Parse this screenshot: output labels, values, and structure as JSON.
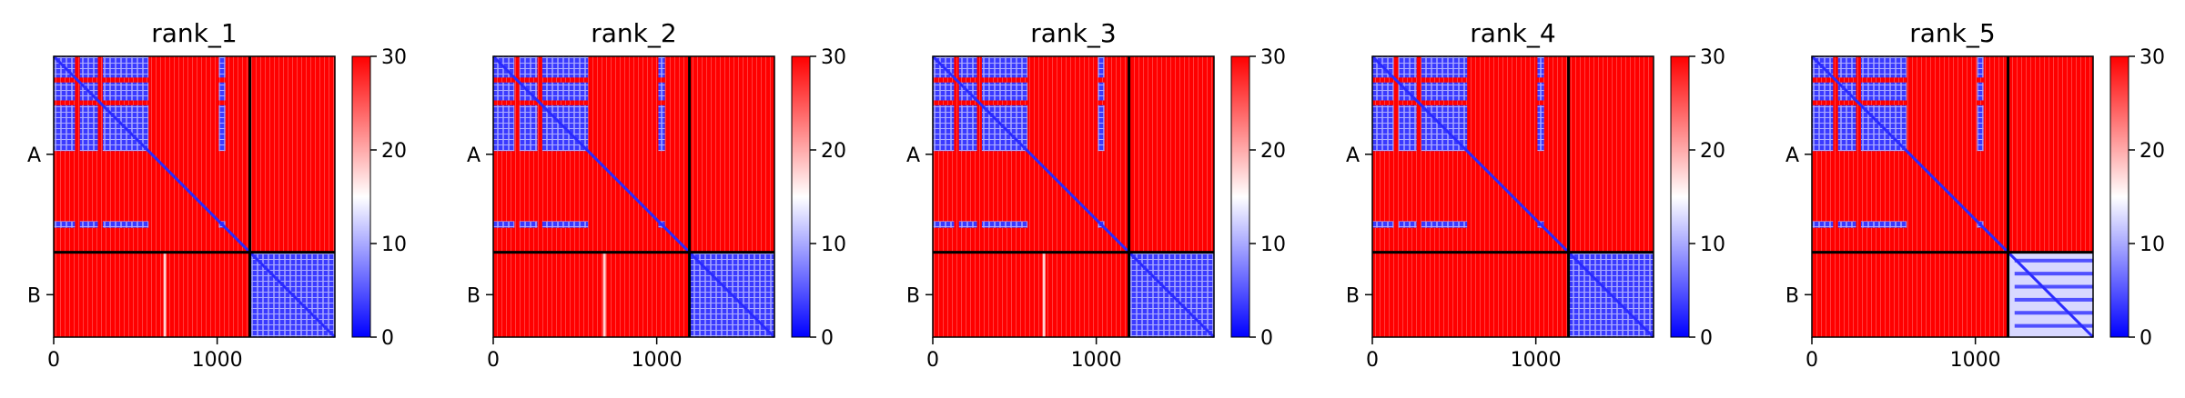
{
  "chart_data": [
    {
      "type": "heatmap",
      "title": "rank_1",
      "x_ticks": [
        0,
        1000
      ],
      "y_tick_labels": [
        "A",
        "B"
      ],
      "chain_boundary": 1200,
      "length": 1720,
      "colorbar": {
        "ticks": [
          0,
          10,
          20,
          30
        ],
        "range": [
          0,
          30
        ],
        "colors": [
          "#0000ff",
          "#ffffff",
          "#ff0000"
        ]
      },
      "a_blue_blocks": [
        [
          0,
          130
        ],
        [
          160,
          270
        ],
        [
          300,
          580
        ],
        [
          1010,
          1050
        ]
      ],
      "b_red_line": 680,
      "b_self_pale": false
    },
    {
      "type": "heatmap",
      "title": "rank_2",
      "x_ticks": [
        0,
        1000
      ],
      "y_tick_labels": [
        "A",
        "B"
      ],
      "chain_boundary": 1200,
      "length": 1720,
      "colorbar": {
        "ticks": [
          0,
          10,
          20,
          30
        ],
        "range": [
          0,
          30
        ],
        "colors": [
          "#0000ff",
          "#ffffff",
          "#ff0000"
        ]
      },
      "a_blue_blocks": [
        [
          0,
          130
        ],
        [
          160,
          270
        ],
        [
          300,
          580
        ],
        [
          1010,
          1050
        ]
      ],
      "b_red_line": 680,
      "b_self_pale": false
    },
    {
      "type": "heatmap",
      "title": "rank_3",
      "x_ticks": [
        0,
        1000
      ],
      "y_tick_labels": [
        "A",
        "B"
      ],
      "chain_boundary": 1200,
      "length": 1720,
      "colorbar": {
        "ticks": [
          0,
          10,
          20,
          30
        ],
        "range": [
          0,
          30
        ],
        "colors": [
          "#0000ff",
          "#ffffff",
          "#ff0000"
        ]
      },
      "a_blue_blocks": [
        [
          0,
          130
        ],
        [
          160,
          270
        ],
        [
          300,
          580
        ],
        [
          1010,
          1050
        ]
      ],
      "b_red_line": 680,
      "b_self_pale": false
    },
    {
      "type": "heatmap",
      "title": "rank_4",
      "x_ticks": [
        0,
        1000
      ],
      "y_tick_labels": [
        "A",
        "B"
      ],
      "chain_boundary": 1200,
      "length": 1720,
      "colorbar": {
        "ticks": [
          0,
          10,
          20,
          30
        ],
        "range": [
          0,
          30
        ],
        "colors": [
          "#0000ff",
          "#ffffff",
          "#ff0000"
        ]
      },
      "a_blue_blocks": [
        [
          0,
          130
        ],
        [
          160,
          270
        ],
        [
          300,
          580
        ],
        [
          1010,
          1050
        ]
      ],
      "b_red_line": null,
      "b_self_pale": false
    },
    {
      "type": "heatmap",
      "title": "rank_5",
      "x_ticks": [
        0,
        1000
      ],
      "y_tick_labels": [
        "A",
        "B"
      ],
      "chain_boundary": 1200,
      "length": 1720,
      "colorbar": {
        "ticks": [
          0,
          10,
          20,
          30
        ],
        "range": [
          0,
          30
        ],
        "colors": [
          "#0000ff",
          "#ffffff",
          "#ff0000"
        ]
      },
      "a_blue_blocks": [
        [
          0,
          130
        ],
        [
          160,
          270
        ],
        [
          300,
          580
        ],
        [
          1010,
          1050
        ]
      ],
      "b_red_line": null,
      "b_self_pale": true
    }
  ]
}
